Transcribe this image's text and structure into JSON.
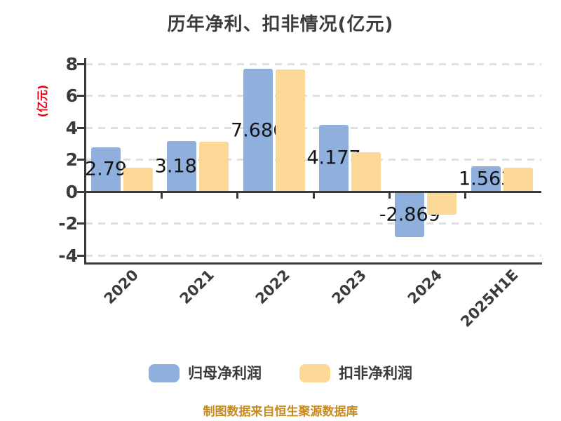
{
  "title": "历年净利、扣非情况(亿元)",
  "source_note": "制图数据来自恒生聚源数据库",
  "y_axis": {
    "label": "(亿元)",
    "ticks": [
      8,
      6,
      4,
      2,
      0,
      -2,
      -4
    ],
    "min": -4,
    "max": 8
  },
  "legend": [
    {
      "label": "归母净利润",
      "color": "#8FB0DC"
    },
    {
      "label": "扣非净利润",
      "color": "#FBD895"
    }
  ],
  "colors": {
    "background": "#ffffff",
    "title_text": "#3c3c3c",
    "axis": "#3a3a3a",
    "gridline": "#e0e0e0",
    "y_axis_label": "#e60012",
    "bar_blue": "#8FB0DC",
    "bar_orange": "#FBD895",
    "data_label": "#141414",
    "source_text": "#c8891d"
  },
  "chart_data": {
    "type": "bar",
    "title": "历年净利、扣非情况(亿元)",
    "xlabel": "",
    "ylabel": "(亿元)",
    "ylim": [
      -4,
      8
    ],
    "grid": "dashed",
    "legend_position": "bottom",
    "categories": [
      "2020",
      "2021",
      "2022",
      "2023",
      "2024",
      "2025H1E"
    ],
    "series": [
      {
        "name": "归母净利润",
        "color": "#8FB0DC",
        "values": [
          2.79,
          3.181,
          7.686,
          4.177,
          -2.869,
          1.563
        ],
        "labels": [
          "2.79",
          "3.181",
          "7.686",
          "4.177",
          "-2.869",
          "1.563"
        ]
      },
      {
        "name": "扣非净利润",
        "color": "#FBD895",
        "values": [
          1.5,
          3.1,
          7.63,
          2.45,
          -1.45,
          1.5
        ]
      }
    ]
  }
}
